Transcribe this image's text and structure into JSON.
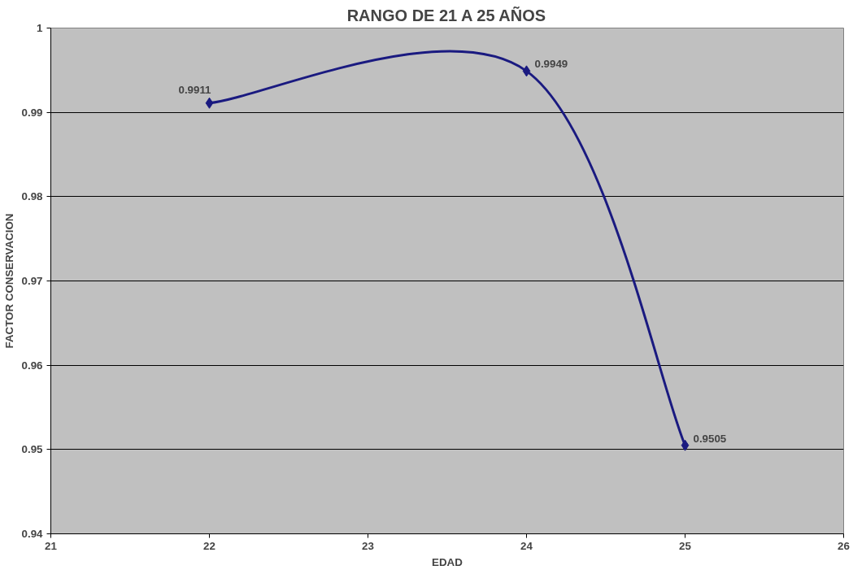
{
  "chart_data": {
    "type": "line",
    "title": "RANGO DE 21 A 25 AÑOS",
    "xlabel": "EDAD",
    "ylabel": "FACTOR CONSERVACION",
    "x": [
      22,
      24,
      25
    ],
    "series": [
      {
        "color": "#1a1a80",
        "values": [
          0.9911,
          0.9949,
          0.9505
        ]
      }
    ],
    "xlim": [
      21,
      26
    ],
    "xticks": [
      21,
      22,
      23,
      24,
      25,
      26
    ],
    "ylim": [
      0.94,
      1
    ],
    "yticks": [
      0.94,
      0.95,
      0.96,
      0.97,
      0.98,
      0.99,
      1
    ],
    "grid": "y",
    "marker": "diamond",
    "line_style": "solid",
    "data_labels": true
  }
}
